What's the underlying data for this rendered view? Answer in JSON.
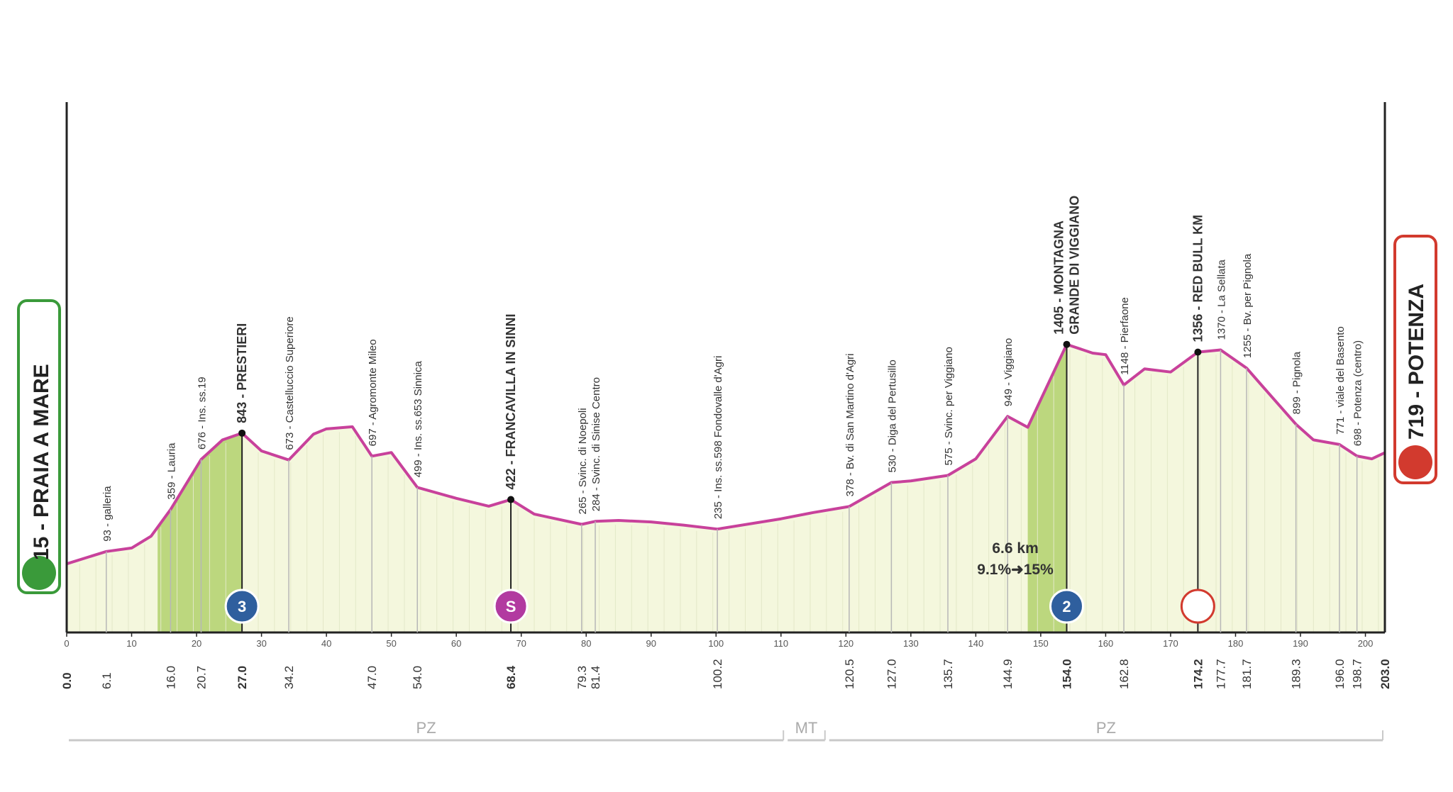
{
  "chart_data": {
    "type": "area",
    "start": "15 - PRAIA A MARE",
    "finish": "719 - POTENZA",
    "x": [
      0,
      6.1,
      10,
      13,
      16,
      20.7,
      24,
      27,
      30,
      34.2,
      38,
      40,
      44,
      47,
      50,
      54,
      60,
      65,
      68.4,
      72,
      79.3,
      81.4,
      85,
      90,
      95,
      100.2,
      110,
      115,
      120.5,
      127,
      130,
      135.7,
      140,
      144.9,
      148,
      154,
      158,
      160,
      162.8,
      166,
      170,
      174.2,
      177.7,
      181.7,
      185,
      189.3,
      192,
      196,
      198.7,
      201,
      203
    ],
    "values": [
      15,
      93,
      115,
      190,
      359,
      676,
      800,
      843,
      730,
      673,
      836,
      870,
      883,
      697,
      720,
      499,
      430,
      380,
      422,
      330,
      265,
      284,
      290,
      280,
      260,
      235,
      300,
      340,
      378,
      530,
      540,
      575,
      680,
      949,
      880,
      1405,
      1350,
      1340,
      1148,
      1250,
      1230,
      1356,
      1370,
      1255,
      1100,
      899,
      800,
      771,
      698,
      680,
      719
    ],
    "color": "#c8419b",
    "fill": "#f4f7dd",
    "climb_fill": "#bcd77e",
    "climbs": [
      [
        14,
        27
      ],
      [
        148,
        154
      ]
    ],
    "xlim": [
      0,
      203
    ],
    "ylim": [
      -420,
      2940
    ],
    "xticks": [
      0,
      10,
      20,
      30,
      40,
      50,
      60,
      70,
      80,
      90,
      100,
      110,
      120,
      130,
      140,
      150,
      160,
      170,
      180,
      190,
      200
    ],
    "start_km": {
      "value": 0,
      "label": "0.0"
    },
    "finish_km": {
      "value": 203,
      "label": "203.0"
    },
    "waypoints": [
      {
        "km": 6.1,
        "label": "93 - galleria",
        "bold": false
      },
      {
        "km": {
          "value": 16,
          "label": "16.0"
        },
        "label": "359 - Lauria",
        "bold": false
      },
      {
        "km": 20.7,
        "label": "676 - Ins. ss.19",
        "bold": false
      },
      {
        "km": {
          "value": 27,
          "label": "27.0"
        },
        "label": "843 - PRESTIERI",
        "bold": true
      },
      {
        "km": 34.2,
        "label": "673 - Castelluccio Superiore",
        "bold": false
      },
      {
        "km": {
          "value": 47,
          "label": "47.0"
        },
        "label": "697 - Agromonte Mileo",
        "bold": false
      },
      {
        "km": {
          "value": 54,
          "label": "54.0"
        },
        "label": "499 - Ins. ss.653 Sinnica",
        "bold": false
      },
      {
        "km": 68.4,
        "label": "422 - FRANCAVILLA IN SINNI",
        "bold": true
      },
      {
        "km": 79.3,
        "label": "265 - Svinc. di Noepoli",
        "bold": false
      },
      {
        "km": 81.4,
        "label": "284 - Svinc. di Sinise Centro",
        "bold": false
      },
      {
        "km": 100.2,
        "label": "235 - Ins. ss.598 Fondovalle d'Agri",
        "bold": false
      },
      {
        "km": 120.5,
        "label": "378 - Bv. di San Martino d'Agri",
        "bold": false
      },
      {
        "km": {
          "value": 127,
          "label": "127.0"
        },
        "label": "530 - Diga del Pertusillo",
        "bold": false
      },
      {
        "km": 135.7,
        "label": "575 - Svinc. per Viggiano",
        "bold": false
      },
      {
        "km": 144.9,
        "label": "949 - Viggiano",
        "bold": false
      },
      {
        "km": {
          "value": 154,
          "label": "154.0"
        },
        "label": [
          "1405 - MONTAGNA",
          "GRANDE DI VIGGIANO"
        ],
        "bold": true
      },
      {
        "km": 162.8,
        "label": "1148 - Pierfaone",
        "bold": false
      },
      {
        "km": 174.2,
        "label": "1356 - RED BULL KM",
        "bold": true
      },
      {
        "km": 177.7,
        "label": "1370 - La Sellata",
        "bold": false
      },
      {
        "km": 181.7,
        "label": "1255 - Bv. per Pignola",
        "bold": false
      },
      {
        "km": 189.3,
        "label": "899 - Pignola",
        "bold": false
      },
      {
        "km": {
          "value": 196,
          "label": "196.0"
        },
        "label": "771 - viale del Basento",
        "bold": false
      },
      {
        "km": 198.7,
        "label": "698 - Potenza (centro)",
        "bold": false
      }
    ],
    "badges": [
      {
        "x": 27,
        "label": "3",
        "color": "#2f5f9e"
      },
      {
        "x": 68.4,
        "label": "S",
        "color": "#b23aa0"
      },
      {
        "x": 154,
        "label": "2",
        "color": "#2f5f9e"
      },
      {
        "x": 174.2,
        "color": "#ffffff"
      }
    ],
    "climb_note": {
      "x": 151,
      "lines": [
        "6.6 km",
        "9.1%➜15%"
      ]
    },
    "regions": [
      {
        "label": "PZ",
        "range": [
          0,
          110.7
        ]
      },
      {
        "label": "MT",
        "range": [
          110.7,
          117.1
        ]
      },
      {
        "label": "PZ",
        "range": [
          117.1,
          203
        ]
      }
    ]
  }
}
